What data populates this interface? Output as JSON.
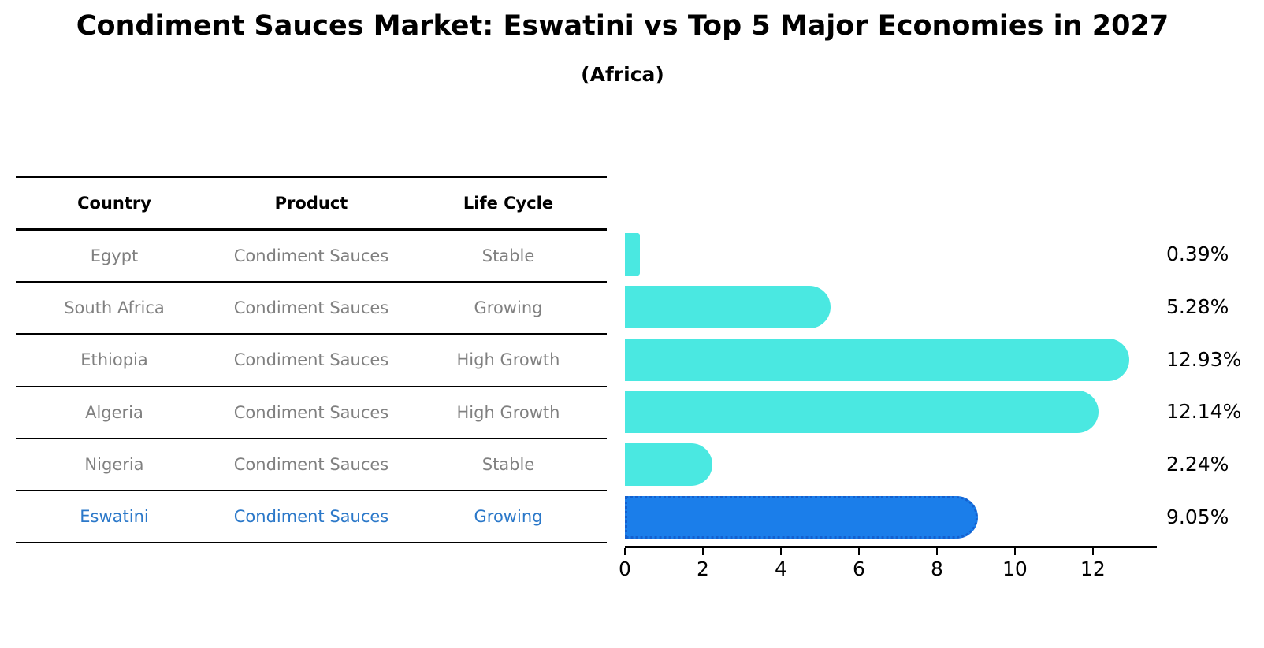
{
  "title": "Condiment Sauces Market: Eswatini vs Top 5 Major Economies in 2027",
  "subtitle": "(Africa)",
  "table": {
    "headers": [
      "Country",
      "Product",
      "Life Cycle"
    ],
    "rows": [
      {
        "country": "Egypt",
        "product": "Condiment Sauces",
        "life_cycle": "Stable",
        "highlight": false
      },
      {
        "country": "South Africa",
        "product": "Condiment Sauces",
        "life_cycle": "Growing",
        "highlight": false
      },
      {
        "country": "Ethiopia",
        "product": "Condiment Sauces",
        "life_cycle": "High Growth",
        "highlight": false
      },
      {
        "country": "Algeria",
        "product": "Condiment Sauces",
        "life_cycle": "High Growth",
        "highlight": false
      },
      {
        "country": "Nigeria",
        "product": "Condiment Sauces",
        "life_cycle": "Stable",
        "highlight": false
      },
      {
        "country": "Eswatini",
        "product": "Condiment Sauces",
        "life_cycle": "Growing",
        "highlight": true
      }
    ]
  },
  "chart_data": {
    "type": "bar",
    "orientation": "horizontal",
    "title": "Condiment Sauces Market: Eswatini vs Top 5 Major Economies in 2027",
    "subtitle": "(Africa)",
    "categories": [
      "Egypt",
      "South Africa",
      "Ethiopia",
      "Algeria",
      "Nigeria",
      "Eswatini"
    ],
    "values": [
      0.39,
      5.28,
      12.93,
      12.14,
      2.24,
      9.05
    ],
    "value_labels": [
      "0.39%",
      "5.28%",
      "12.93%",
      "12.14%",
      "2.24%",
      "9.05%"
    ],
    "x_ticks": [
      0,
      2,
      4,
      6,
      8,
      10,
      12
    ],
    "xlim": [
      0,
      13.64
    ],
    "grid": false,
    "legend": false,
    "highlight_index": 5
  },
  "colors": {
    "background": "#FFFFFF",
    "title_text": "#000000",
    "table_body_text": "#808080",
    "highlight_text": "#2B78C9",
    "bar_default": "#4AE8E1",
    "bar_highlight": "#1B7EEA",
    "bar_highlight_border": "#1460CF",
    "axis": "#000000"
  }
}
